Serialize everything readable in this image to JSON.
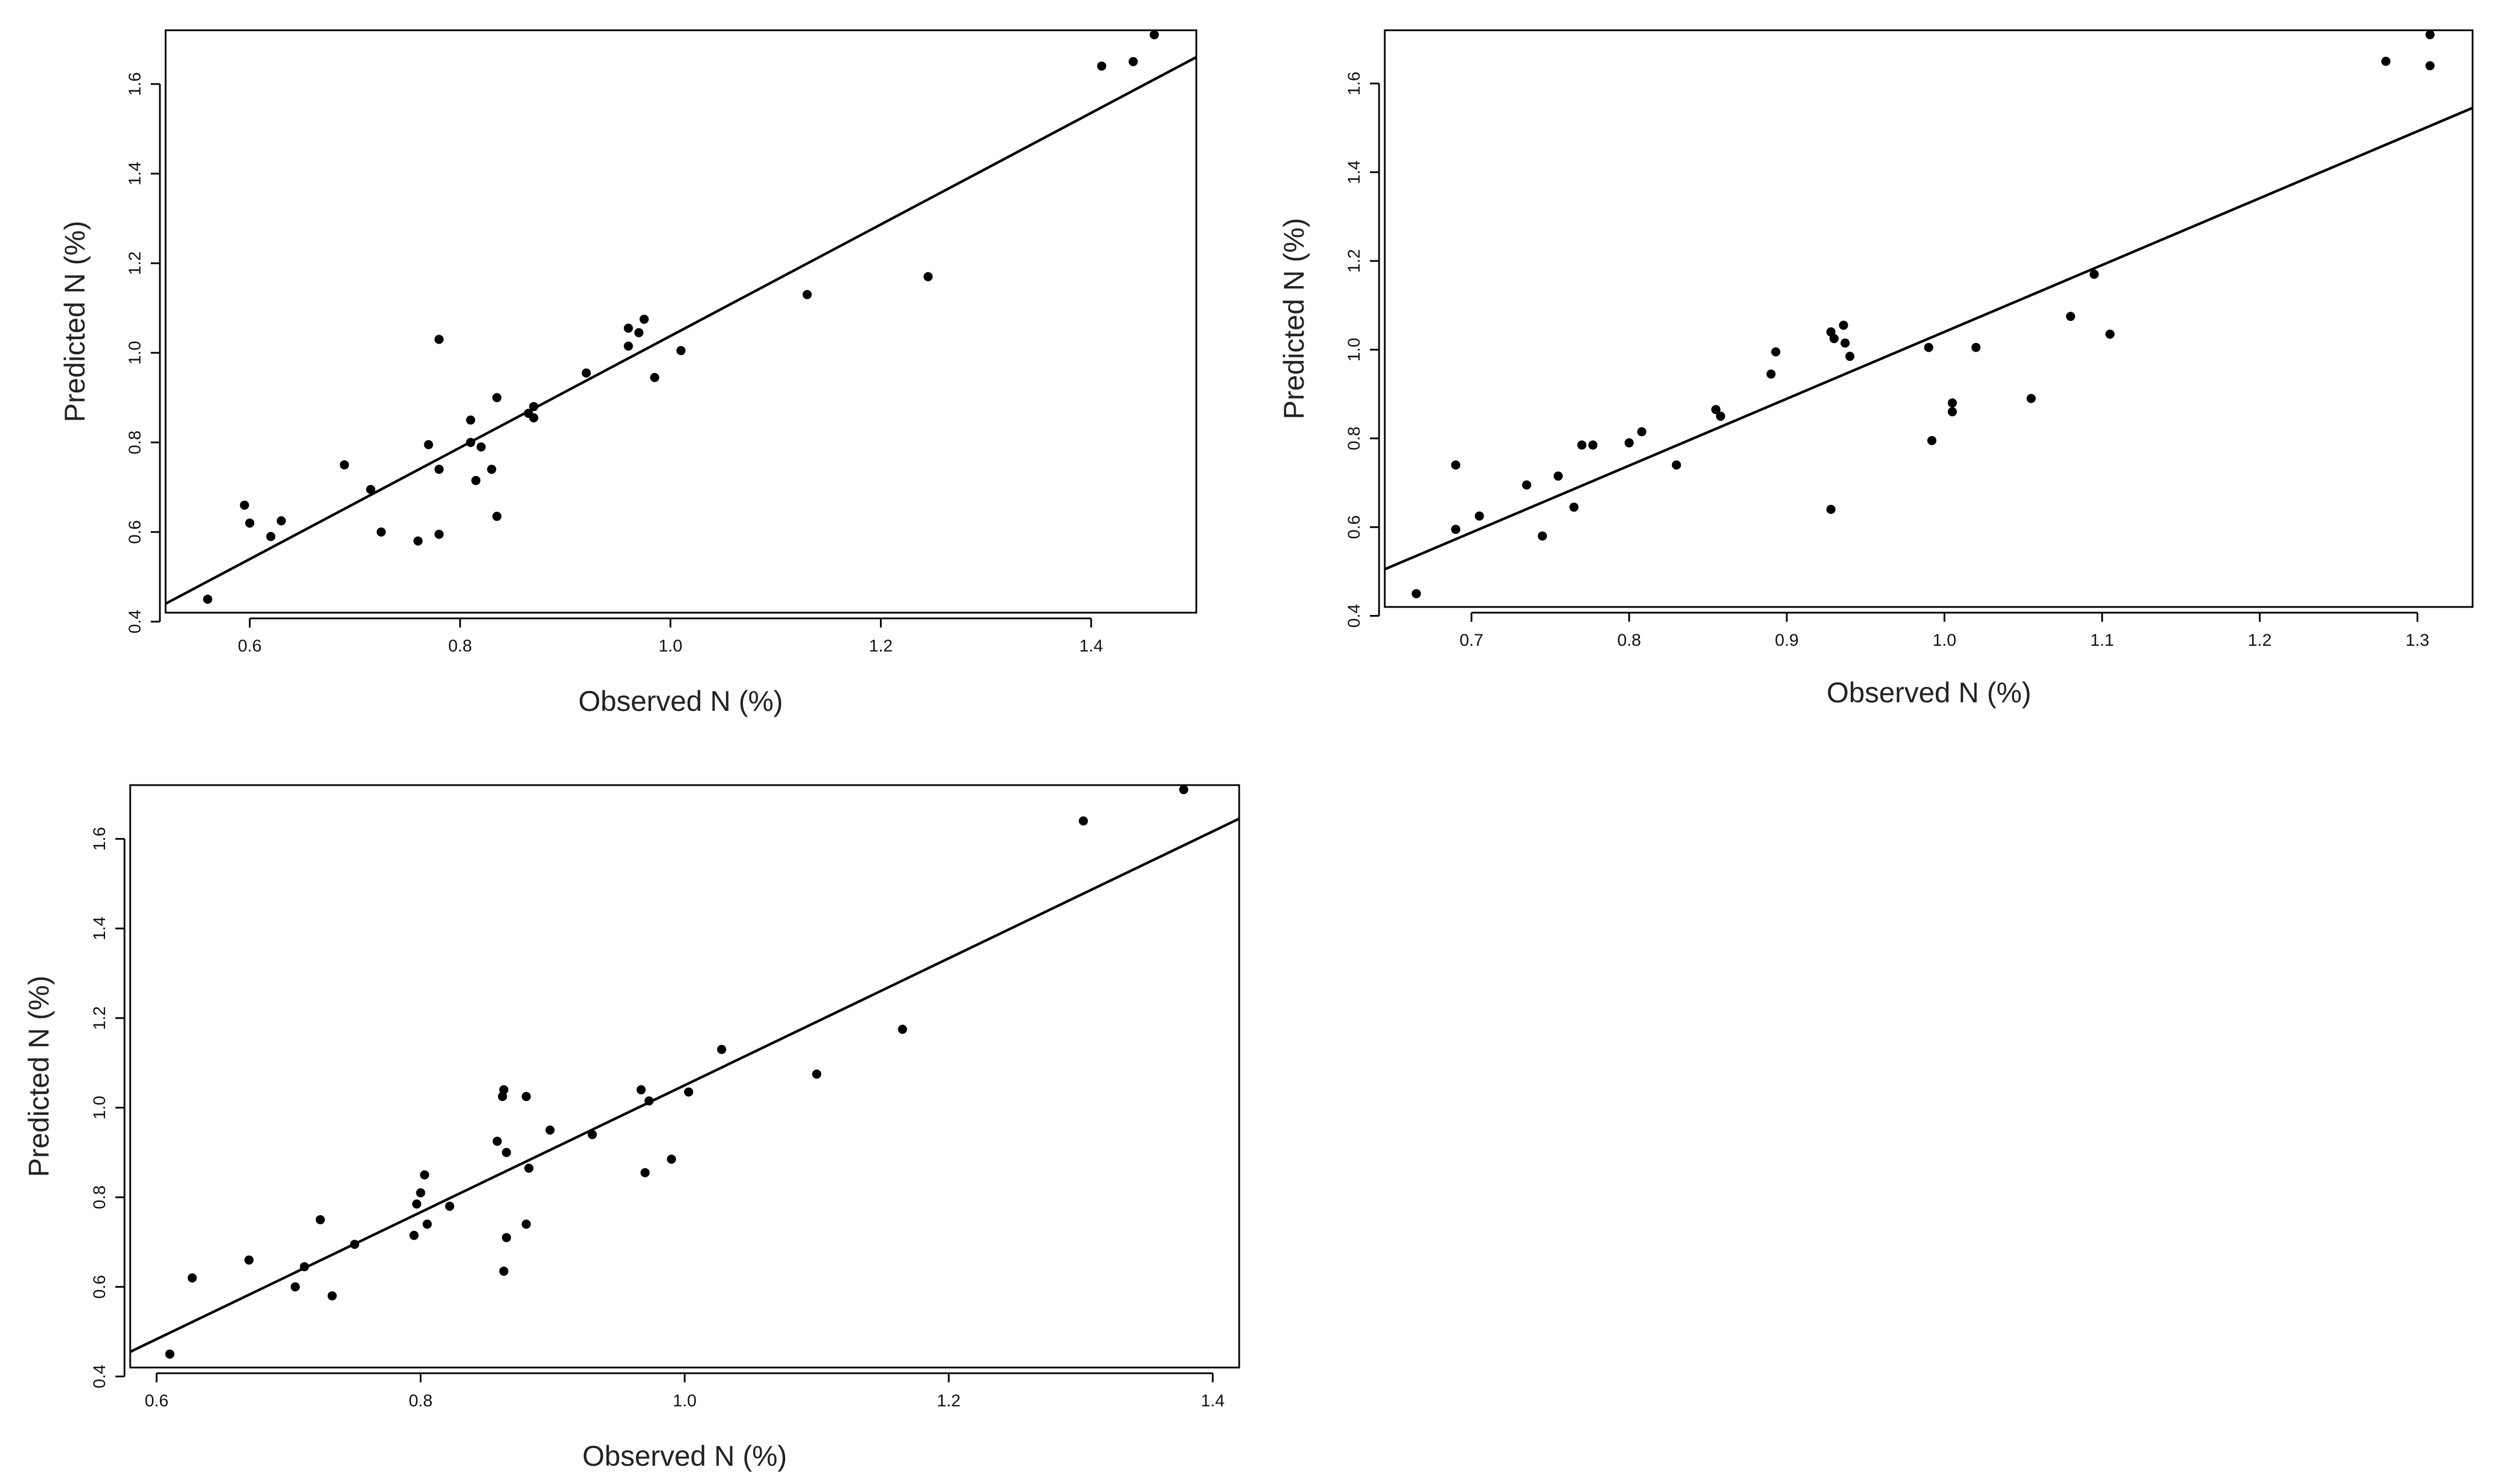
{
  "chart_data": [
    {
      "type": "scatter",
      "title": "",
      "xlabel": "Observed N (%)",
      "ylabel": "Predicted N (%)",
      "xlim": [
        0.52,
        1.5
      ],
      "ylim": [
        0.42,
        1.72
      ],
      "xticks": [
        0.6,
        0.8,
        1.0,
        1.2,
        1.4
      ],
      "xtick_labels": [
        "0.6",
        "0.8",
        "1.0",
        "1.2",
        "1.4"
      ],
      "yticks": [
        0.4,
        0.6,
        0.8,
        1.0,
        1.2,
        1.4,
        1.6
      ],
      "ytick_labels": [
        "0.4",
        "0.6",
        "0.8",
        "1.0",
        "1.2",
        "1.4",
        "1.6"
      ],
      "fit_line": {
        "x": [
          0.52,
          1.5
        ],
        "y": [
          0.44,
          1.66
        ]
      },
      "points": [
        {
          "x": 0.56,
          "y": 0.45
        },
        {
          "x": 0.595,
          "y": 0.66
        },
        {
          "x": 0.6,
          "y": 0.62
        },
        {
          "x": 0.62,
          "y": 0.59
        },
        {
          "x": 0.63,
          "y": 0.625
        },
        {
          "x": 0.69,
          "y": 0.75
        },
        {
          "x": 0.715,
          "y": 0.695
        },
        {
          "x": 0.725,
          "y": 0.6
        },
        {
          "x": 0.76,
          "y": 0.58
        },
        {
          "x": 0.77,
          "y": 0.795
        },
        {
          "x": 0.78,
          "y": 0.74
        },
        {
          "x": 0.78,
          "y": 0.595
        },
        {
          "x": 0.78,
          "y": 1.03
        },
        {
          "x": 0.81,
          "y": 0.85
        },
        {
          "x": 0.81,
          "y": 0.8
        },
        {
          "x": 0.815,
          "y": 0.715
        },
        {
          "x": 0.82,
          "y": 0.79
        },
        {
          "x": 0.83,
          "y": 0.74
        },
        {
          "x": 0.835,
          "y": 0.9
        },
        {
          "x": 0.835,
          "y": 0.635
        },
        {
          "x": 0.865,
          "y": 0.865
        },
        {
          "x": 0.87,
          "y": 0.88
        },
        {
          "x": 0.87,
          "y": 0.855
        },
        {
          "x": 0.92,
          "y": 0.955
        },
        {
          "x": 0.96,
          "y": 1.055
        },
        {
          "x": 0.96,
          "y": 1.015
        },
        {
          "x": 0.97,
          "y": 1.045
        },
        {
          "x": 0.975,
          "y": 1.075
        },
        {
          "x": 0.985,
          "y": 0.945
        },
        {
          "x": 1.01,
          "y": 1.005
        },
        {
          "x": 1.13,
          "y": 1.13
        },
        {
          "x": 1.245,
          "y": 1.17
        },
        {
          "x": 1.41,
          "y": 1.64
        },
        {
          "x": 1.44,
          "y": 1.65
        },
        {
          "x": 1.46,
          "y": 1.71
        }
      ]
    },
    {
      "type": "scatter",
      "title": "",
      "xlabel": "Observed N (%)",
      "ylabel": "Predicted N (%)",
      "xlim": [
        0.645,
        1.335
      ],
      "ylim": [
        0.42,
        1.72
      ],
      "xticks": [
        0.7,
        0.8,
        0.9,
        1.0,
        1.1,
        1.2,
        1.3
      ],
      "xtick_labels": [
        "0.7",
        "0.8",
        "0.9",
        "1.0",
        "1.1",
        "1.2",
        "1.3"
      ],
      "yticks": [
        0.4,
        0.6,
        0.8,
        1.0,
        1.2,
        1.4,
        1.6
      ],
      "ytick_labels": [
        "0.4",
        "0.6",
        "0.8",
        "1.0",
        "1.2",
        "1.4",
        "1.6"
      ],
      "fit_line": {
        "x": [
          0.645,
          1.335
        ],
        "y": [
          0.505,
          1.545
        ]
      },
      "points": [
        {
          "x": 0.665,
          "y": 0.45
        },
        {
          "x": 0.69,
          "y": 0.74
        },
        {
          "x": 0.69,
          "y": 0.595
        },
        {
          "x": 0.705,
          "y": 0.625
        },
        {
          "x": 0.735,
          "y": 0.695
        },
        {
          "x": 0.745,
          "y": 0.58
        },
        {
          "x": 0.755,
          "y": 0.715
        },
        {
          "x": 0.765,
          "y": 0.645
        },
        {
          "x": 0.77,
          "y": 0.785
        },
        {
          "x": 0.777,
          "y": 0.785
        },
        {
          "x": 0.8,
          "y": 0.79
        },
        {
          "x": 0.808,
          "y": 0.815
        },
        {
          "x": 0.83,
          "y": 0.74
        },
        {
          "x": 0.855,
          "y": 0.865
        },
        {
          "x": 0.858,
          "y": 0.85
        },
        {
          "x": 0.89,
          "y": 0.945
        },
        {
          "x": 0.893,
          "y": 0.995
        },
        {
          "x": 0.928,
          "y": 1.04
        },
        {
          "x": 0.93,
          "y": 1.025
        },
        {
          "x": 0.928,
          "y": 0.64
        },
        {
          "x": 0.936,
          "y": 1.055
        },
        {
          "x": 0.937,
          "y": 1.015
        },
        {
          "x": 0.94,
          "y": 0.985
        },
        {
          "x": 0.99,
          "y": 1.005
        },
        {
          "x": 0.992,
          "y": 0.795
        },
        {
          "x": 1.005,
          "y": 0.88
        },
        {
          "x": 1.005,
          "y": 0.86
        },
        {
          "x": 1.02,
          "y": 1.005
        },
        {
          "x": 1.055,
          "y": 0.89
        },
        {
          "x": 1.08,
          "y": 1.075
        },
        {
          "x": 1.095,
          "y": 1.17
        },
        {
          "x": 1.105,
          "y": 1.035
        },
        {
          "x": 1.28,
          "y": 1.65
        },
        {
          "x": 1.308,
          "y": 1.71
        },
        {
          "x": 1.308,
          "y": 1.64
        }
      ]
    },
    {
      "type": "scatter",
      "title": "",
      "xlabel": "Observed N (%)",
      "ylabel": "Predicted N (%)",
      "xlim": [
        0.58,
        1.42
      ],
      "ylim": [
        0.42,
        1.72
      ],
      "xticks": [
        0.6,
        0.8,
        1.0,
        1.2,
        1.4
      ],
      "xtick_labels": [
        "0.6",
        "0.8",
        "1.0",
        "1.2",
        "1.4"
      ],
      "yticks": [
        0.4,
        0.6,
        0.8,
        1.0,
        1.2,
        1.4,
        1.6
      ],
      "ytick_labels": [
        "0.4",
        "0.6",
        "0.8",
        "1.0",
        "1.2",
        "1.4",
        "1.6"
      ],
      "fit_line": {
        "x": [
          0.58,
          1.42
        ],
        "y": [
          0.455,
          1.645
        ]
      },
      "points": [
        {
          "x": 0.61,
          "y": 0.45
        },
        {
          "x": 0.627,
          "y": 0.62
        },
        {
          "x": 0.67,
          "y": 0.66
        },
        {
          "x": 0.705,
          "y": 0.6
        },
        {
          "x": 0.712,
          "y": 0.645
        },
        {
          "x": 0.724,
          "y": 0.75
        },
        {
          "x": 0.733,
          "y": 0.58
        },
        {
          "x": 0.75,
          "y": 0.695
        },
        {
          "x": 0.795,
          "y": 0.715
        },
        {
          "x": 0.797,
          "y": 0.785
        },
        {
          "x": 0.8,
          "y": 0.81
        },
        {
          "x": 0.803,
          "y": 0.85
        },
        {
          "x": 0.805,
          "y": 0.74
        },
        {
          "x": 0.822,
          "y": 0.78
        },
        {
          "x": 0.858,
          "y": 0.925
        },
        {
          "x": 0.862,
          "y": 1.025
        },
        {
          "x": 0.863,
          "y": 1.04
        },
        {
          "x": 0.865,
          "y": 0.9
        },
        {
          "x": 0.865,
          "y": 0.71
        },
        {
          "x": 0.863,
          "y": 0.635
        },
        {
          "x": 0.88,
          "y": 1.025
        },
        {
          "x": 0.882,
          "y": 0.865
        },
        {
          "x": 0.88,
          "y": 0.74
        },
        {
          "x": 0.898,
          "y": 0.95
        },
        {
          "x": 0.93,
          "y": 0.94
        },
        {
          "x": 0.967,
          "y": 1.04
        },
        {
          "x": 0.973,
          "y": 1.015
        },
        {
          "x": 0.97,
          "y": 0.855
        },
        {
          "x": 0.99,
          "y": 0.885
        },
        {
          "x": 1.003,
          "y": 1.035
        },
        {
          "x": 1.028,
          "y": 1.13
        },
        {
          "x": 1.1,
          "y": 1.075
        },
        {
          "x": 1.165,
          "y": 1.175
        },
        {
          "x": 1.302,
          "y": 1.64
        },
        {
          "x": 1.378,
          "y": 1.71
        }
      ]
    }
  ]
}
